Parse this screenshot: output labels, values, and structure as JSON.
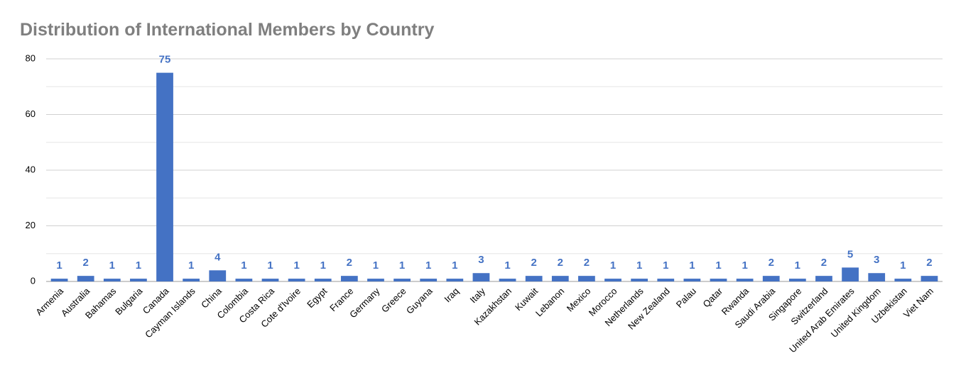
{
  "chart_data": {
    "type": "bar",
    "title": "Distribution of International Members by Country",
    "categories": [
      "Armenia",
      "Australia",
      "Bahamas",
      "Bulgaria",
      "Canada",
      "Cayman Islands",
      "China",
      "Colombia",
      "Costa Rica",
      "Cote d'Ivoire",
      "Egypt",
      "France",
      "Germany",
      "Greece",
      "Guyana",
      "Iraq",
      "Italy",
      "Kazakhstan",
      "Kuwait",
      "Lebanon",
      "Mexico",
      "Morocco",
      "Netherlands",
      "New Zealand",
      "Palau",
      "Qatar",
      "Rwanda",
      "Saudi Arabia",
      "Singapore",
      "Switzerland",
      "United Arab Emirates",
      "United Kingdom",
      "Uzbekistan",
      "Viet Nam"
    ],
    "values": [
      1,
      2,
      1,
      1,
      75,
      1,
      4,
      1,
      1,
      1,
      1,
      2,
      1,
      1,
      1,
      1,
      3,
      1,
      2,
      2,
      2,
      1,
      1,
      1,
      1,
      1,
      1,
      2,
      1,
      2,
      5,
      3,
      1,
      2
    ],
    "color": "#4472c4",
    "ylim": [
      0,
      80
    ],
    "yticks": [
      0,
      20,
      40,
      60,
      80
    ],
    "yminorticks": [
      10,
      30,
      50,
      70
    ],
    "grid": true,
    "data_labels": true
  }
}
